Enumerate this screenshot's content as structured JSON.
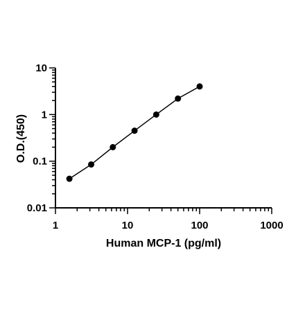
{
  "chart_data": {
    "type": "scatter",
    "title": "",
    "xlabel": "Human MCP-1 (pg/ml)",
    "ylabel": "O.D.(450)",
    "x_scale": "log",
    "y_scale": "log",
    "xlim": [
      1,
      1000
    ],
    "ylim": [
      0.01,
      10
    ],
    "x_ticks": [
      1,
      10,
      100,
      1000
    ],
    "x_tick_labels": [
      "1",
      "10",
      "100",
      "1000"
    ],
    "y_ticks": [
      0.01,
      0.1,
      1,
      10
    ],
    "y_tick_labels": [
      "0.01",
      "0.1",
      "1",
      "10"
    ],
    "grid": false,
    "legend": "none",
    "marker_color": "#000000",
    "line_color": "#000000",
    "fit_line": true,
    "series": [
      {
        "x": [
          1.56,
          3.13,
          6.25,
          12.5,
          25,
          50,
          100
        ],
        "y": [
          0.042,
          0.085,
          0.2,
          0.45,
          1.0,
          2.2,
          4.0
        ]
      }
    ]
  }
}
